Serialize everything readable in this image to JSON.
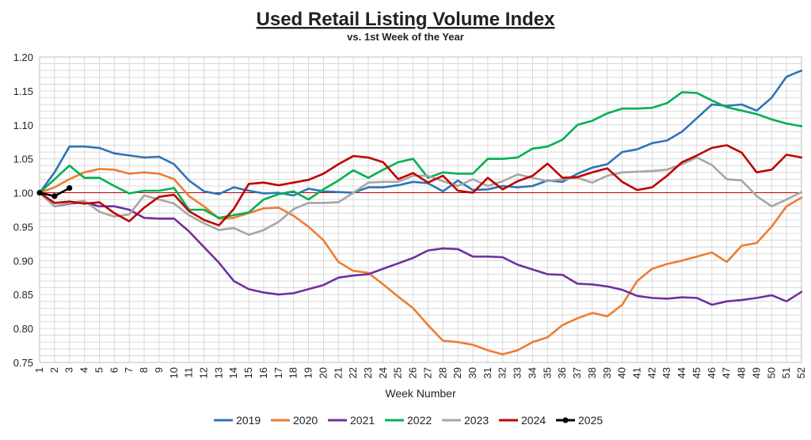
{
  "chart_data": {
    "type": "line",
    "title": "Used Retail Listing Volume Index",
    "subtitle": "vs. 1st Week of the Year",
    "xlabel": "Week Number",
    "ylabel": "",
    "xlim": [
      1,
      52
    ],
    "ylim": [
      0.75,
      1.2
    ],
    "yticks": [
      "1.20",
      "1.15",
      "1.10",
      "1.05",
      "1.00",
      "0.95",
      "0.90",
      "0.85",
      "0.80",
      "0.75"
    ],
    "xticks": [
      "1",
      "2",
      "3",
      "4",
      "5",
      "6",
      "7",
      "8",
      "9",
      "10",
      "11",
      "12",
      "13",
      "14",
      "15",
      "16",
      "17",
      "18",
      "19",
      "20",
      "21",
      "22",
      "23",
      "24",
      "25",
      "26",
      "27",
      "28",
      "29",
      "30",
      "31",
      "32",
      "33",
      "34",
      "35",
      "36",
      "37",
      "38",
      "39",
      "40",
      "41",
      "42",
      "43",
      "44",
      "45",
      "46",
      "47",
      "48",
      "49",
      "50",
      "51",
      "52"
    ],
    "grid": true,
    "reference_line": 1.0,
    "reference_color": "#c00000",
    "legend_position": "bottom",
    "series": [
      {
        "name": "2019",
        "color": "#2e75b6",
        "values": [
          1.0,
          1.03,
          1.068,
          1.068,
          1.066,
          1.058,
          1.055,
          1.052,
          1.053,
          1.042,
          1.018,
          1.002,
          0.998,
          1.008,
          1.003,
          0.999,
          1.0,
          0.996,
          1.006,
          1.002,
          1.001,
          1.0,
          1.008,
          1.008,
          1.011,
          1.016,
          1.014,
          1.002,
          1.018,
          1.004,
          1.005,
          1.01,
          1.008,
          1.01,
          1.018,
          1.016,
          1.028,
          1.037,
          1.042,
          1.06,
          1.064,
          1.073,
          1.077,
          1.09,
          1.11,
          1.13,
          1.128,
          1.13,
          1.121,
          1.14,
          1.171,
          1.18
        ]
      },
      {
        "name": "2020",
        "color": "#ed7d31",
        "values": [
          1.0,
          1.008,
          1.02,
          1.03,
          1.035,
          1.034,
          1.028,
          1.03,
          1.028,
          1.02,
          0.995,
          0.98,
          0.962,
          0.963,
          0.97,
          0.977,
          0.978,
          0.966,
          0.95,
          0.93,
          0.898,
          0.885,
          0.882,
          0.865,
          0.847,
          0.83,
          0.805,
          0.782,
          0.78,
          0.776,
          0.768,
          0.762,
          0.768,
          0.78,
          0.787,
          0.805,
          0.815,
          0.823,
          0.818,
          0.835,
          0.87,
          0.888,
          0.895,
          0.9,
          0.906,
          0.912,
          0.898,
          0.922,
          0.926,
          0.95,
          0.98,
          0.993
        ]
      },
      {
        "name": "2021",
        "color": "#7030a0",
        "values": [
          1.0,
          0.98,
          0.984,
          0.986,
          0.98,
          0.98,
          0.975,
          0.963,
          0.962,
          0.962,
          0.943,
          0.92,
          0.897,
          0.87,
          0.858,
          0.853,
          0.85,
          0.852,
          0.858,
          0.864,
          0.875,
          0.878,
          0.88,
          0.888,
          0.896,
          0.904,
          0.915,
          0.918,
          0.917,
          0.906,
          0.906,
          0.905,
          0.894,
          0.887,
          0.88,
          0.879,
          0.866,
          0.865,
          0.862,
          0.857,
          0.848,
          0.845,
          0.844,
          0.846,
          0.845,
          0.835,
          0.84,
          0.842,
          0.845,
          0.849,
          0.84,
          0.854
        ]
      },
      {
        "name": "2022",
        "color": "#00b050",
        "values": [
          1.0,
          1.02,
          1.04,
          1.022,
          1.022,
          1.01,
          0.999,
          1.003,
          1.003,
          1.007,
          0.975,
          0.975,
          0.963,
          0.967,
          0.971,
          0.99,
          0.998,
          1.002,
          0.99,
          1.005,
          1.018,
          1.033,
          1.022,
          1.034,
          1.045,
          1.05,
          1.022,
          1.03,
          1.028,
          1.028,
          1.05,
          1.05,
          1.052,
          1.065,
          1.068,
          1.078,
          1.1,
          1.106,
          1.117,
          1.124,
          1.124,
          1.125,
          1.132,
          1.148,
          1.147,
          1.136,
          1.126,
          1.121,
          1.116,
          1.108,
          1.102,
          1.098
        ]
      },
      {
        "name": "2023",
        "color": "#a6a6a6",
        "values": [
          1.0,
          0.98,
          0.985,
          0.988,
          0.972,
          0.965,
          0.968,
          0.996,
          0.99,
          0.984,
          0.967,
          0.955,
          0.945,
          0.948,
          0.938,
          0.945,
          0.957,
          0.976,
          0.985,
          0.985,
          0.986,
          1.0,
          1.015,
          1.016,
          1.016,
          1.025,
          1.025,
          1.017,
          1.01,
          1.02,
          1.01,
          1.017,
          1.027,
          1.022,
          1.017,
          1.02,
          1.022,
          1.015,
          1.025,
          1.03,
          1.031,
          1.032,
          1.034,
          1.042,
          1.052,
          1.041,
          1.02,
          1.018,
          0.995,
          0.98,
          0.99,
          1.001
        ]
      },
      {
        "name": "2024",
        "color": "#c00000",
        "values": [
          1.0,
          0.985,
          0.987,
          0.984,
          0.986,
          0.97,
          0.958,
          0.978,
          0.994,
          0.997,
          0.973,
          0.96,
          0.952,
          0.976,
          1.013,
          1.015,
          1.011,
          1.015,
          1.019,
          1.028,
          1.042,
          1.054,
          1.052,
          1.045,
          1.02,
          1.029,
          1.015,
          1.025,
          1.003,
          1.0,
          1.022,
          1.005,
          1.017,
          1.025,
          1.043,
          1.022,
          1.023,
          1.03,
          1.036,
          1.016,
          1.004,
          1.008,
          1.025,
          1.045,
          1.055,
          1.066,
          1.07,
          1.059,
          1.03,
          1.034,
          1.056,
          1.052
        ]
      },
      {
        "name": "2025",
        "color": "#000000",
        "markers": true,
        "values": [
          1.0,
          0.995,
          1.007
        ]
      }
    ]
  }
}
